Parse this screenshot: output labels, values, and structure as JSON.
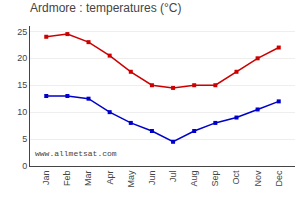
{
  "chart_data": {
    "type": "line",
    "title": "Ardmore : temperatures (°C)",
    "categories": [
      "Jan",
      "Feb",
      "Mar",
      "Apr",
      "May",
      "Jun",
      "Jul",
      "Aug",
      "Sep",
      "Oct",
      "Nov",
      "Dec"
    ],
    "series": [
      {
        "color": "#cc0000",
        "marker": "square",
        "values": [
          24,
          24.5,
          23,
          20.5,
          17.5,
          15,
          14.5,
          15,
          15,
          17.5,
          20,
          22
        ]
      },
      {
        "color": "#0000cc",
        "marker": "square",
        "values": [
          13,
          13,
          12.5,
          10,
          8,
          6.5,
          4.5,
          6.5,
          8,
          9,
          10.5,
          12
        ]
      }
    ],
    "ylim": [
      0,
      26
    ],
    "yticks": [
      0,
      5,
      10,
      15,
      20,
      25
    ],
    "grid": true,
    "annotations": [
      "www.allmetsat.com"
    ]
  }
}
